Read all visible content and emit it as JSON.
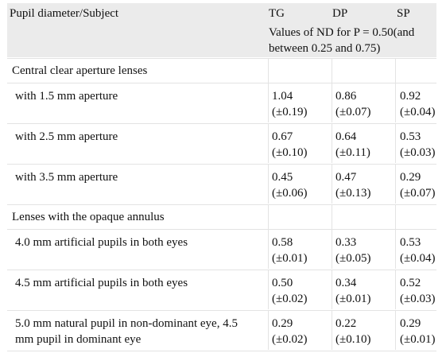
{
  "header": {
    "col1": "Pupil diameter/Subject",
    "col_tg": "TG",
    "col_dp": "DP",
    "col_sp": "SP",
    "subtitle_line1": "Values of ND for P = 0.50(and",
    "subtitle_line2": "between 0.25 and 0.75)"
  },
  "sections": [
    {
      "title": "Central clear aperture lenses",
      "rows": [
        {
          "label": [
            "with 1.5 mm aperture"
          ],
          "tg": [
            "1.04",
            "(±0.19)"
          ],
          "dp": [
            "0.86",
            "(±0.07)"
          ],
          "sp": [
            "0.92",
            "(±0.04)"
          ]
        },
        {
          "label": [
            "with 2.5 mm aperture"
          ],
          "tg": [
            "0.67",
            "(±0.10)"
          ],
          "dp": [
            "0.64",
            "(±0.11)"
          ],
          "sp": [
            "0.53",
            "(±0.03)"
          ]
        },
        {
          "label": [
            "with 3.5 mm aperture"
          ],
          "tg": [
            "0.45",
            "(±0.06)"
          ],
          "dp": [
            "0.47",
            "(±0.13)"
          ],
          "sp": [
            "0.29",
            "(±0.07)"
          ]
        }
      ]
    },
    {
      "title": "Lenses with the opaque annulus",
      "rows": [
        {
          "label": [
            "4.0 mm artificial pupils in both eyes"
          ],
          "tg": [
            "0.58",
            "(±0.01)"
          ],
          "dp": [
            "0.33",
            "(±0.05)"
          ],
          "sp": [
            "0.53",
            "(±0.04)"
          ]
        },
        {
          "label": [
            "4.5 mm artificial pupils in both eyes"
          ],
          "tg": [
            "0.50",
            "(±0.02)"
          ],
          "dp": [
            "0.34",
            "(±0.01)"
          ],
          "sp": [
            "0.52",
            "(±0.03)"
          ]
        },
        {
          "label": [
            "5.0 mm natural pupil in non-dominant eye, 4.5",
            "mm pupil in dominant eye"
          ],
          "tg": [
            "0.29",
            "(±0.02)"
          ],
          "dp": [
            "0.22",
            "(±0.10)"
          ],
          "sp": [
            "0.29",
            "(±0.01)"
          ]
        }
      ]
    }
  ]
}
